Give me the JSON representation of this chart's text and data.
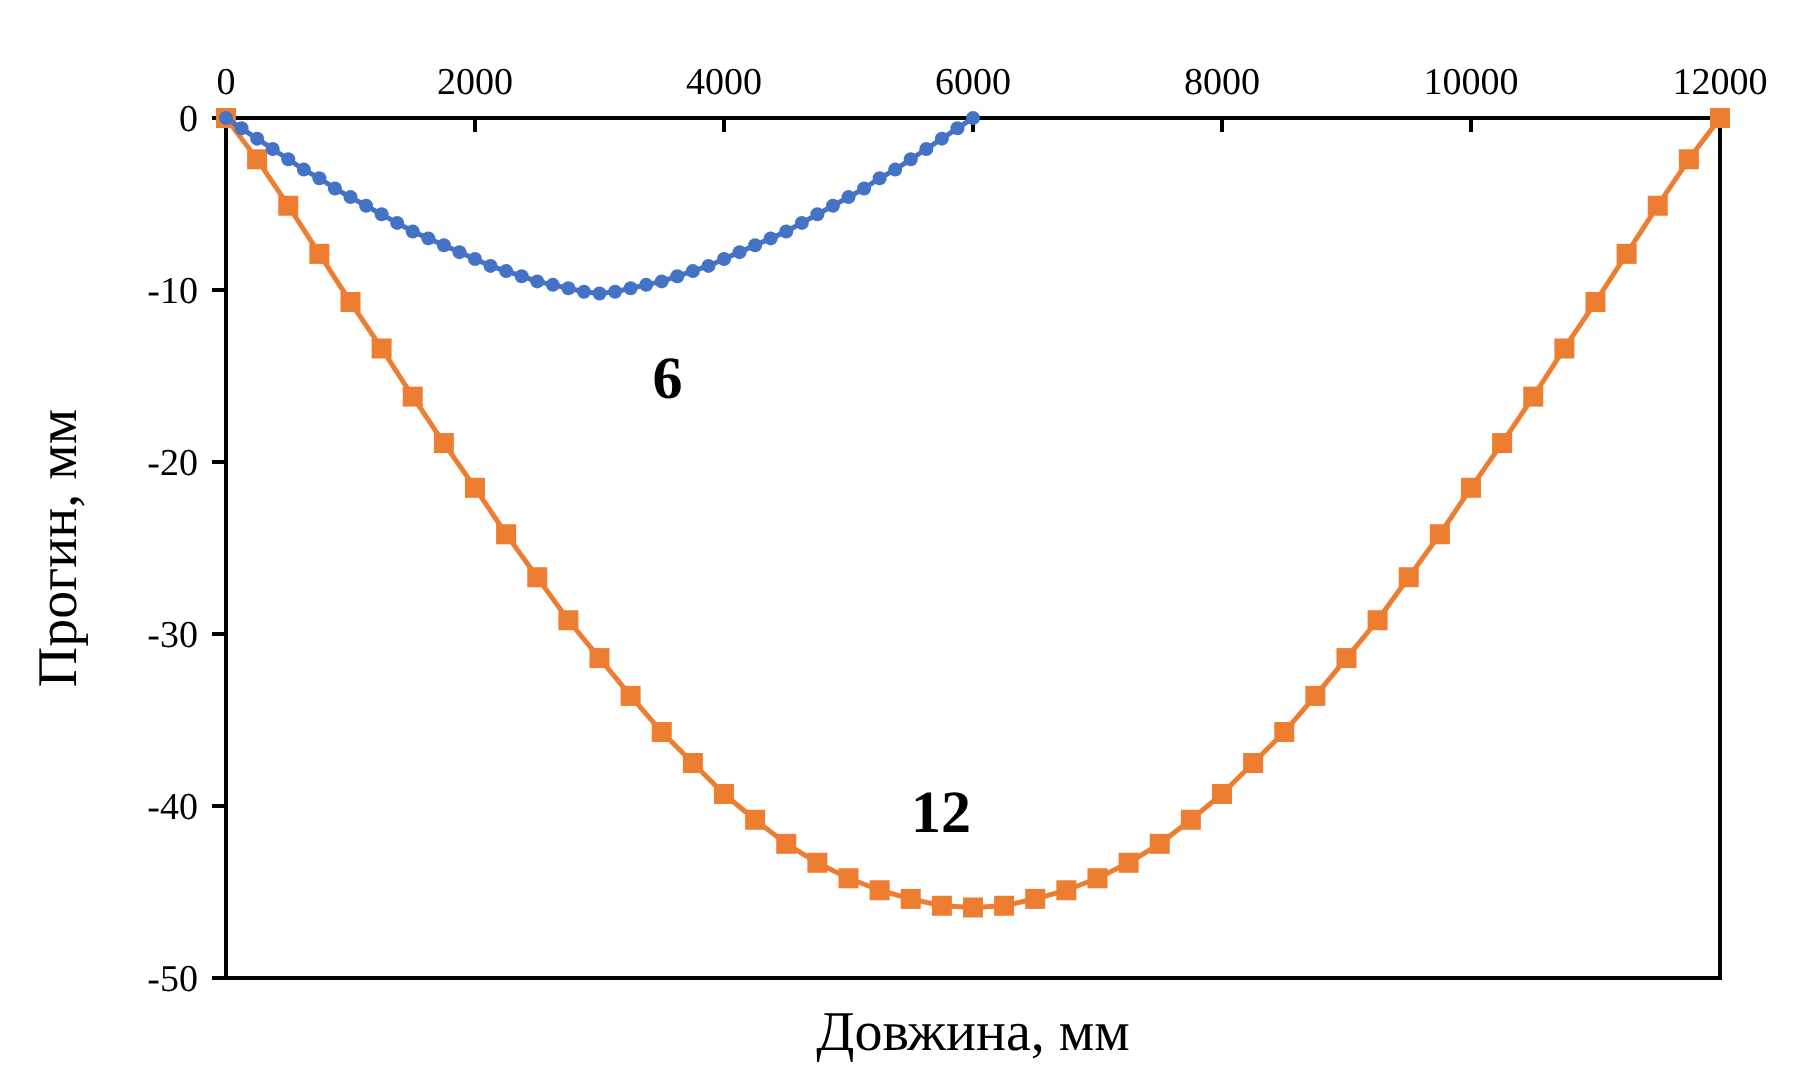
{
  "chart_data": {
    "type": "line",
    "xlabel": "Довжина, мм",
    "ylabel": "Прогин, мм",
    "xlim": [
      0,
      12000
    ],
    "xticks": [
      0,
      2000,
      4000,
      6000,
      8000,
      10000,
      12000
    ],
    "ylim": [
      -50,
      0
    ],
    "yticks": [
      -50,
      -40,
      -30,
      -20,
      -10,
      0
    ],
    "grid": false,
    "series": [
      {
        "name": "6",
        "color": "#4472c4",
        "marker": "circle",
        "x": [
          0,
          125,
          250,
          375,
          500,
          625,
          750,
          875,
          1000,
          1125,
          1250,
          1375,
          1500,
          1625,
          1750,
          1875,
          2000,
          2125,
          2250,
          2375,
          2500,
          2625,
          2750,
          2875,
          3000,
          3125,
          3250,
          3375,
          3500,
          3625,
          3750,
          3875,
          4000,
          4125,
          4250,
          4375,
          4500,
          4625,
          4750,
          4875,
          5000,
          5125,
          5250,
          5375,
          5500,
          5625,
          5750,
          5875,
          6000
        ],
        "values": [
          0,
          -0.6,
          -1.2,
          -1.8,
          -2.4,
          -3.0,
          -3.5,
          -4.1,
          -4.6,
          -5.1,
          -5.6,
          -6.1,
          -6.6,
          -7.0,
          -7.4,
          -7.8,
          -8.2,
          -8.6,
          -8.9,
          -9.2,
          -9.5,
          -9.7,
          -9.9,
          -10.1,
          -10.2,
          -10.1,
          -9.9,
          -9.7,
          -9.5,
          -9.2,
          -8.9,
          -8.6,
          -8.2,
          -7.8,
          -7.4,
          -7.0,
          -6.6,
          -6.1,
          -5.6,
          -5.1,
          -4.6,
          -4.1,
          -3.5,
          -3.0,
          -2.4,
          -1.8,
          -1.2,
          -0.6,
          0
        ]
      },
      {
        "name": "12",
        "color": "#ed7d31",
        "marker": "square",
        "x": [
          0,
          250,
          500,
          750,
          1000,
          1250,
          1500,
          1750,
          2000,
          2250,
          2500,
          2750,
          3000,
          3250,
          3500,
          3750,
          4000,
          4250,
          4500,
          4750,
          5000,
          5250,
          5500,
          5750,
          6000,
          6250,
          6500,
          6750,
          7000,
          7250,
          7500,
          7750,
          8000,
          8250,
          8500,
          8750,
          9000,
          9250,
          9500,
          9750,
          10000,
          10250,
          10500,
          10750,
          11000,
          11250,
          11500,
          11750,
          12000
        ],
        "values": [
          0,
          -2.4,
          -5.1,
          -7.9,
          -10.7,
          -13.4,
          -16.2,
          -18.9,
          -21.5,
          -24.2,
          -26.7,
          -29.2,
          -31.4,
          -33.6,
          -35.7,
          -37.5,
          -39.3,
          -40.8,
          -42.2,
          -43.3,
          -44.2,
          -44.9,
          -45.4,
          -45.8,
          -45.9,
          -45.8,
          -45.4,
          -44.9,
          -44.2,
          -43.3,
          -42.2,
          -40.8,
          -39.3,
          -37.5,
          -35.7,
          -33.6,
          -31.4,
          -29.2,
          -26.7,
          -24.2,
          -21.5,
          -18.9,
          -16.2,
          -13.4,
          -10.7,
          -7.9,
          -5.1,
          -2.4,
          0
        ]
      }
    ]
  }
}
